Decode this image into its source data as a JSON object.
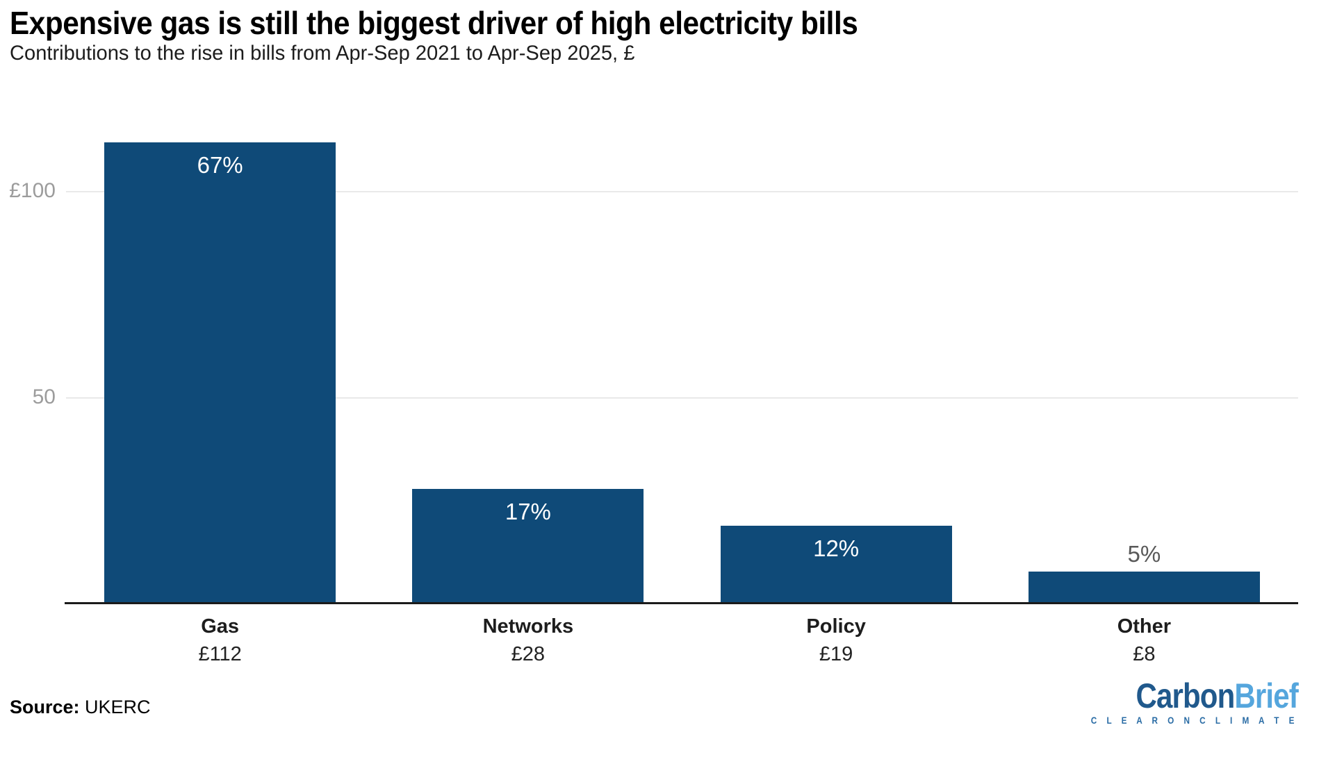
{
  "chart_data": {
    "type": "bar",
    "title": "Expensive gas is still the biggest driver of high electricity bills",
    "subtitle": "Contributions to the rise in bills from Apr-Sep 2021 to Apr-Sep 2025, £",
    "categories": [
      "Gas",
      "Networks",
      "Policy",
      "Other"
    ],
    "values": [
      112,
      28,
      19,
      8
    ],
    "value_labels": [
      "£112",
      "£28",
      "£19",
      "£8"
    ],
    "percent_labels": [
      "67%",
      "17%",
      "12%",
      "5%"
    ],
    "ylabel": "£",
    "ylim": [
      0,
      112
    ],
    "yticks": [
      {
        "label": "£100",
        "value": 100
      },
      {
        "label": "50",
        "value": 50
      }
    ],
    "grid": "horizontal",
    "legend": "none",
    "bar_color": "#0f4a78",
    "pct_label_inside_color": "#ffffff",
    "pct_label_outside_color": "#595959",
    "gridline_color": "#e9e9e9",
    "axis_line_color": "#1b1b1b",
    "tick_label_color": "#9c9c9c"
  },
  "footer": {
    "source_label": "Source:",
    "source_value": " UKERC",
    "logo": {
      "part1": "Carbon",
      "part2": "Brief",
      "tagline": "C L E A R   O N   C L I M A T E",
      "color1": "#20598c",
      "color2": "#55a6dd",
      "tagline_color": "#2a6ca5"
    }
  }
}
